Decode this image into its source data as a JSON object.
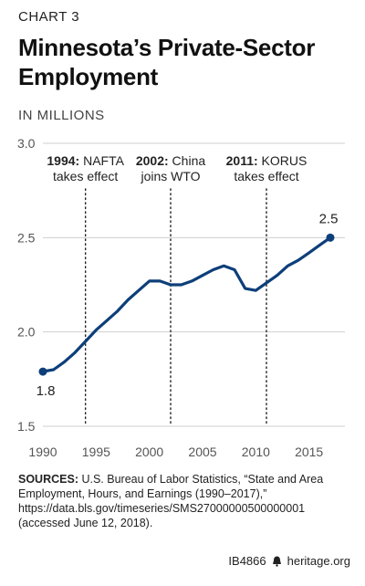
{
  "kicker": "CHART 3",
  "title_line1": "Minnesota’s Private-Sector",
  "title_line2": "Employment",
  "units": "IN MILLIONS",
  "sources": {
    "label": "SOURCES:",
    "text": "U.S. Bureau of Labor Statistics, “State and Area Employment, Hours, and Earnings (1990–2017),” https://data.bls.gov/timeseries/SMS27000000500000001 (accessed June 12, 2018)."
  },
  "footer": {
    "code": "IB4866",
    "site": "heritage.org"
  },
  "colors": {
    "line": "#0d3f7a",
    "grid": "#cfcfcf",
    "text": "#222222"
  },
  "chart_data": {
    "type": "line",
    "title": "Minnesota’s Private-Sector Employment",
    "ylabel": "IN MILLIONS",
    "ylim": [
      1.5,
      3.0
    ],
    "xlim": [
      1990,
      2017
    ],
    "yticks": [
      "1.5",
      "2.0",
      "2.5",
      "3.0"
    ],
    "xticks": [
      "1990",
      "1995",
      "2000",
      "2005",
      "2010",
      "2015"
    ],
    "grid": true,
    "series": [
      {
        "x": [
          1990,
          1991,
          1992,
          1993,
          1994,
          1995,
          1996,
          1997,
          1998,
          1999,
          2000,
          2001,
          2002,
          2003,
          2004,
          2005,
          2006,
          2007,
          2008,
          2009,
          2010,
          2011,
          2012,
          2013,
          2014,
          2015,
          2016,
          2017
        ],
        "values": [
          1.79,
          1.8,
          1.84,
          1.89,
          1.95,
          2.01,
          2.06,
          2.11,
          2.17,
          2.22,
          2.27,
          2.27,
          2.25,
          2.25,
          2.27,
          2.3,
          2.33,
          2.35,
          2.33,
          2.23,
          2.22,
          2.26,
          2.3,
          2.35,
          2.38,
          2.42,
          2.46,
          2.5
        ]
      }
    ],
    "start_label": "1.8",
    "end_label": "2.5",
    "annotations": [
      {
        "x": 1994,
        "bold": "1994:",
        "text1": "NAFTA",
        "text2": "takes effect"
      },
      {
        "x": 2002,
        "bold": "2002:",
        "text1": "China",
        "text2": "joins WTO"
      },
      {
        "x": 2011,
        "bold": "2011:",
        "text1": "KORUS",
        "text2": "takes effect"
      }
    ]
  }
}
